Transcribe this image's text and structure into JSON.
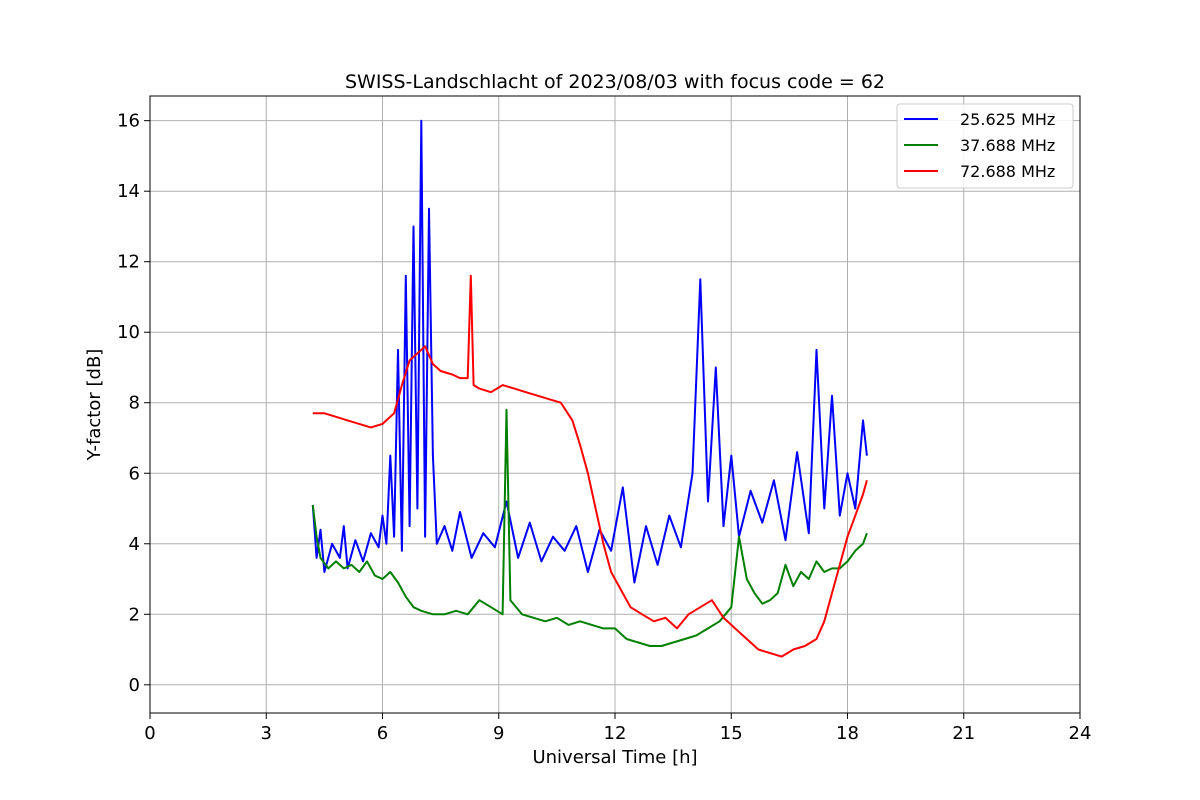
{
  "chart_data": {
    "type": "line",
    "title": "SWISS-Landschlacht of 2023/08/03 with focus code = 62",
    "xlabel": "Universal Time [h]",
    "ylabel": "Y-factor [dB]",
    "xlim": [
      0,
      24
    ],
    "ylim": [
      -0.8,
      16.7
    ],
    "xticks": [
      0,
      3,
      6,
      9,
      12,
      15,
      18,
      21,
      24
    ],
    "yticks": [
      0,
      2,
      4,
      6,
      8,
      10,
      12,
      14,
      16
    ],
    "grid": true,
    "legend_position": "top-right",
    "series": [
      {
        "name": "25.625 MHz",
        "color": "#0000ff",
        "x": [
          4.2,
          4.3,
          4.4,
          4.5,
          4.7,
          4.9,
          5.0,
          5.1,
          5.3,
          5.5,
          5.7,
          5.9,
          6.0,
          6.1,
          6.2,
          6.3,
          6.4,
          6.5,
          6.6,
          6.7,
          6.8,
          6.9,
          7.0,
          7.1,
          7.2,
          7.3,
          7.4,
          7.6,
          7.8,
          8.0,
          8.3,
          8.6,
          8.9,
          9.2,
          9.5,
          9.8,
          10.1,
          10.4,
          10.7,
          11.0,
          11.3,
          11.6,
          11.9,
          12.2,
          12.5,
          12.8,
          13.1,
          13.4,
          13.7,
          14.0,
          14.2,
          14.4,
          14.6,
          14.8,
          15.0,
          15.2,
          15.5,
          15.8,
          16.1,
          16.4,
          16.7,
          17.0,
          17.2,
          17.4,
          17.6,
          17.8,
          18.0,
          18.2,
          18.4,
          18.5
        ],
        "y": [
          5.1,
          3.6,
          4.4,
          3.2,
          4.0,
          3.6,
          4.5,
          3.3,
          4.1,
          3.5,
          4.3,
          3.9,
          4.8,
          4.0,
          6.5,
          4.2,
          9.5,
          3.8,
          11.6,
          4.5,
          13.0,
          5.0,
          16.0,
          4.2,
          13.5,
          6.5,
          4.0,
          4.5,
          3.8,
          4.9,
          3.6,
          4.3,
          3.9,
          5.2,
          3.6,
          4.6,
          3.5,
          4.2,
          3.8,
          4.5,
          3.2,
          4.4,
          3.8,
          5.6,
          2.9,
          4.5,
          3.4,
          4.8,
          3.9,
          6.0,
          11.5,
          5.2,
          9.0,
          4.5,
          6.5,
          4.2,
          5.5,
          4.6,
          5.8,
          4.1,
          6.6,
          4.3,
          9.5,
          5.0,
          8.2,
          4.8,
          6.0,
          5.0,
          7.5,
          6.5
        ]
      },
      {
        "name": "37.688 MHz",
        "color": "#008000",
        "x": [
          4.2,
          4.3,
          4.4,
          4.6,
          4.8,
          5.0,
          5.2,
          5.4,
          5.6,
          5.8,
          6.0,
          6.2,
          6.4,
          6.6,
          6.8,
          7.0,
          7.3,
          7.6,
          7.9,
          8.2,
          8.5,
          8.8,
          9.1,
          9.2,
          9.3,
          9.6,
          9.9,
          10.2,
          10.5,
          10.8,
          11.1,
          11.4,
          11.7,
          12.0,
          12.3,
          12.6,
          12.9,
          13.2,
          13.5,
          13.8,
          14.1,
          14.4,
          14.7,
          15.0,
          15.2,
          15.4,
          15.6,
          15.8,
          16.0,
          16.2,
          16.4,
          16.6,
          16.8,
          17.0,
          17.2,
          17.4,
          17.6,
          17.8,
          18.0,
          18.2,
          18.4,
          18.5
        ],
        "y": [
          5.1,
          4.2,
          3.6,
          3.3,
          3.5,
          3.3,
          3.4,
          3.2,
          3.5,
          3.1,
          3.0,
          3.2,
          2.9,
          2.5,
          2.2,
          2.1,
          2.0,
          2.0,
          2.1,
          2.0,
          2.4,
          2.2,
          2.0,
          7.8,
          2.4,
          2.0,
          1.9,
          1.8,
          1.9,
          1.7,
          1.8,
          1.7,
          1.6,
          1.6,
          1.3,
          1.2,
          1.1,
          1.1,
          1.2,
          1.3,
          1.4,
          1.6,
          1.8,
          2.2,
          4.2,
          3.0,
          2.6,
          2.3,
          2.4,
          2.6,
          3.4,
          2.8,
          3.2,
          3.0,
          3.5,
          3.2,
          3.3,
          3.3,
          3.5,
          3.8,
          4.0,
          4.3
        ]
      },
      {
        "name": "72.688 MHz",
        "color": "#ff0000",
        "x": [
          4.2,
          4.5,
          4.8,
          5.1,
          5.4,
          5.7,
          6.0,
          6.3,
          6.5,
          6.7,
          6.9,
          7.0,
          7.1,
          7.3,
          7.5,
          7.8,
          8.0,
          8.2,
          8.28,
          8.35,
          8.5,
          8.8,
          9.1,
          9.4,
          9.7,
          10.0,
          10.3,
          10.6,
          10.9,
          11.1,
          11.3,
          11.5,
          11.7,
          11.9,
          12.1,
          12.4,
          12.7,
          13.0,
          13.3,
          13.6,
          13.9,
          14.2,
          14.5,
          14.8,
          15.1,
          15.4,
          15.7,
          16.0,
          16.3,
          16.6,
          16.9,
          17.2,
          17.4,
          17.6,
          17.8,
          18.0,
          18.2,
          18.4,
          18.5
        ],
        "y": [
          7.7,
          7.7,
          7.6,
          7.5,
          7.4,
          7.3,
          7.4,
          7.7,
          8.5,
          9.2,
          9.4,
          9.5,
          9.6,
          9.1,
          8.9,
          8.8,
          8.7,
          8.7,
          11.6,
          8.5,
          8.4,
          8.3,
          8.5,
          8.4,
          8.3,
          8.2,
          8.1,
          8.0,
          7.5,
          6.8,
          6.0,
          5.0,
          4.0,
          3.2,
          2.8,
          2.2,
          2.0,
          1.8,
          1.9,
          1.6,
          2.0,
          2.2,
          2.4,
          1.9,
          1.6,
          1.3,
          1.0,
          0.9,
          0.8,
          1.0,
          1.1,
          1.3,
          1.8,
          2.6,
          3.4,
          4.2,
          4.8,
          5.4,
          5.8
        ]
      }
    ]
  }
}
